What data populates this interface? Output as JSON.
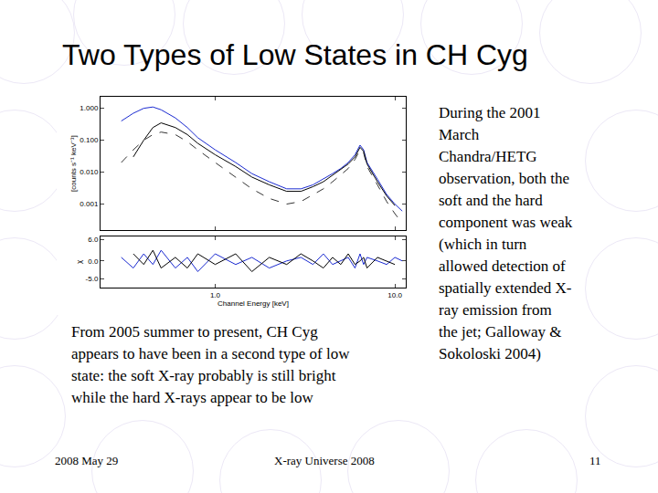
{
  "slide": {
    "title": "Two Types of Low States in CH Cyg",
    "caption": [
      "From 2005 summer to present, CH Cyg",
      "appears to have been in a second type of low",
      "state: the soft X-ray probably is still bright",
      "while the hard X-rays appear to be low"
    ],
    "side_text": [
      "During the 2001",
      "March",
      "Chandra/HETG",
      "observation, both the",
      "soft and the hard",
      "component was weak",
      "(which in turn",
      "allowed detection of",
      "spatially extended X-",
      "ray emission from",
      "the jet; Galloway &",
      "Sokoloski 2004)"
    ],
    "footer": [
      "2008 May 29",
      "X-ray Universe 2008",
      "11"
    ]
  },
  "chart_data": [
    {
      "type": "line",
      "y_label": "[counts s⁻¹ keV⁻¹]",
      "x": [
        0.3,
        0.35,
        0.4,
        0.45,
        0.5,
        0.6,
        0.7,
        0.8,
        1.0,
        1.3,
        1.6,
        2.0,
        2.5,
        3.0,
        3.5,
        4.0,
        4.5,
        5.0,
        5.5,
        6.0,
        6.4,
        6.7,
        7.0,
        8.0,
        9.0,
        10.0,
        11.0
      ],
      "series": [
        {
          "color": "#1a2ad0",
          "line_style": "solid",
          "values": [
            0.4,
            0.7,
            1.0,
            1.1,
            0.9,
            0.5,
            0.25,
            0.12,
            0.05,
            0.02,
            0.009,
            0.005,
            0.003,
            0.003,
            0.004,
            0.006,
            0.009,
            0.013,
            0.02,
            0.035,
            0.07,
            0.05,
            0.02,
            0.006,
            0.002,
            0.001,
            0.0006
          ]
        },
        {
          "color": "#000000",
          "line_style": "solid",
          "values": [
            null,
            0.03,
            0.1,
            0.25,
            0.35,
            0.25,
            0.15,
            0.08,
            0.035,
            0.015,
            0.007,
            0.004,
            0.0025,
            0.0025,
            0.0035,
            0.005,
            0.008,
            0.012,
            0.018,
            0.03,
            0.06,
            0.045,
            0.018,
            0.005,
            0.0018,
            0.0009,
            null
          ]
        },
        {
          "color": "#333333",
          "line_style": "dashed",
          "values": [
            0.02,
            0.05,
            0.1,
            0.15,
            0.18,
            0.15,
            0.09,
            0.05,
            0.02,
            0.007,
            0.003,
            0.0015,
            0.001,
            0.0012,
            0.002,
            0.003,
            0.005,
            0.008,
            0.013,
            0.025,
            0.05,
            0.04,
            0.015,
            0.004,
            0.0012,
            0.0005,
            0.00025
          ]
        }
      ],
      "xlim": [
        0.23,
        11.5
      ],
      "ylim": [
        0.00015,
        2.3
      ],
      "xticks": [
        {
          "value": 1,
          "label": "1.0"
        },
        {
          "value": 10,
          "label": "10.0"
        }
      ],
      "yticks": [
        {
          "value": 1,
          "label": "1.000"
        },
        {
          "value": 0.1,
          "label": "0.100"
        },
        {
          "value": 0.01,
          "label": "0.010"
        },
        {
          "value": 0.001,
          "label": "0.001"
        }
      ],
      "log": true,
      "tick_labels": "y",
      "grid": false
    },
    {
      "type": "line",
      "x_label": "Channel Energy [keV]",
      "y_label": "χ",
      "x": [
        0.3,
        0.35,
        0.4,
        0.45,
        0.5,
        0.6,
        0.7,
        0.8,
        1.0,
        1.3,
        1.6,
        2.0,
        2.5,
        3.0,
        3.5,
        4.0,
        4.5,
        5.0,
        5.5,
        6.0,
        6.4,
        6.7,
        7.0,
        8.0,
        9.0,
        10.0,
        11.0
      ],
      "series": [
        {
          "color": "#1a2ad0",
          "line_style": "solid",
          "values": [
            1,
            -2,
            2,
            -1,
            3,
            -2,
            1,
            -3,
            2,
            -1,
            1,
            -2,
            0,
            1,
            -1,
            2,
            -1,
            0,
            1,
            -2,
            2,
            -1,
            1,
            0,
            -1,
            1,
            0
          ]
        },
        {
          "color": "#000000",
          "line_style": "solid",
          "values": [
            null,
            2,
            -1,
            3,
            -2,
            1,
            -2,
            2,
            -1,
            2,
            -3,
            1,
            -1,
            2,
            0,
            -2,
            1,
            -1,
            2,
            -1,
            0,
            1,
            -2,
            1,
            0,
            -1,
            null
          ]
        }
      ],
      "xlim": [
        0.23,
        11.5
      ],
      "ylim": [
        -7.5,
        7
      ],
      "xticks": [
        {
          "value": 1,
          "label": "1.0"
        },
        {
          "value": 10,
          "label": "10.0"
        }
      ],
      "yticks": [
        {
          "value": 6,
          "label": "6.0"
        },
        {
          "value": 0,
          "label": "0.0"
        },
        {
          "value": -5,
          "label": "-5.0"
        }
      ],
      "log": "x",
      "grid": false
    }
  ]
}
